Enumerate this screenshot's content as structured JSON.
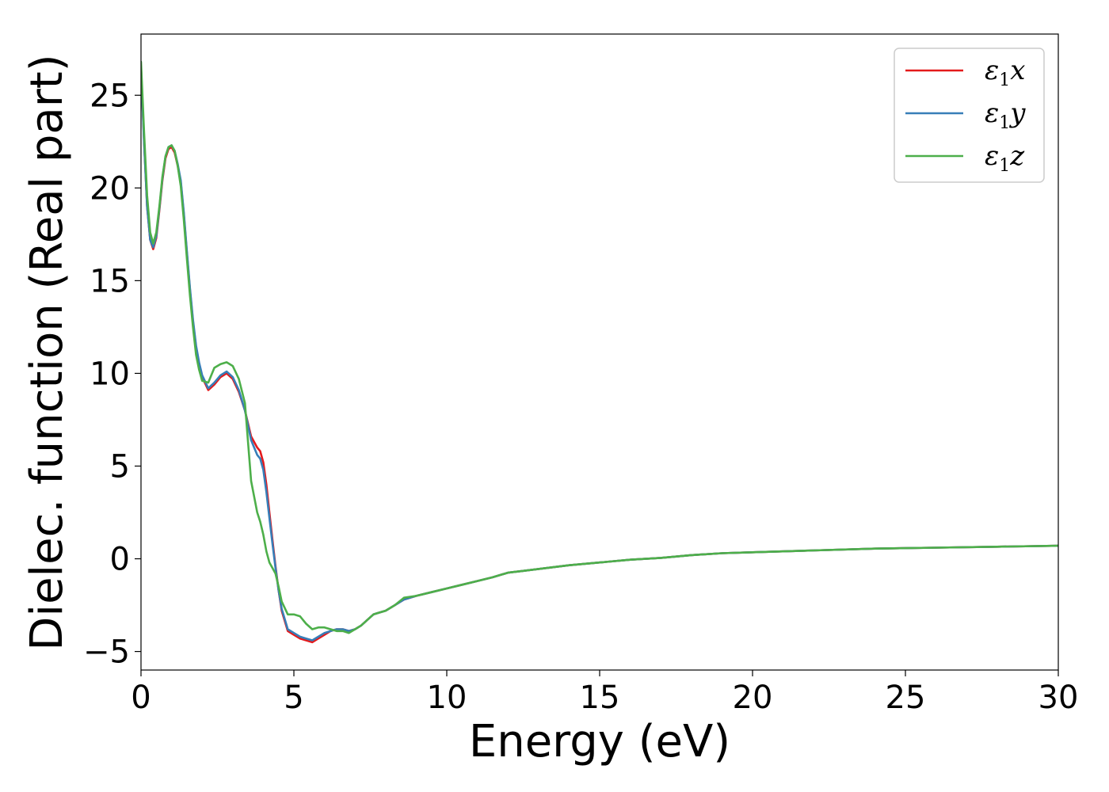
{
  "chart_data": {
    "type": "line",
    "xlabel": "Energy (eV)",
    "ylabel": "Dielec. function (Real part)",
    "xlim": [
      0,
      30
    ],
    "ylim": [
      -6,
      28.3
    ],
    "xticks": [
      0,
      5,
      10,
      15,
      20,
      25,
      30
    ],
    "xtick_labels": [
      "0",
      "5",
      "10",
      "15",
      "20",
      "25",
      "30"
    ],
    "yticks": [
      -5,
      0,
      5,
      10,
      15,
      20,
      25
    ],
    "ytick_labels": [
      "−5",
      "0",
      "5",
      "10",
      "15",
      "20",
      "25"
    ],
    "grid": false,
    "legend_position": "top-right",
    "series": [
      {
        "name": "ε1x",
        "legend_main": "ε",
        "legend_sub": "1",
        "legend_var": "x",
        "color": "#e41a1c",
        "x": [
          0,
          0.1,
          0.2,
          0.3,
          0.4,
          0.5,
          0.6,
          0.7,
          0.8,
          0.9,
          1.0,
          1.1,
          1.2,
          1.3,
          1.4,
          1.5,
          1.6,
          1.7,
          1.8,
          1.9,
          2.0,
          2.2,
          2.4,
          2.6,
          2.8,
          3.0,
          3.2,
          3.4,
          3.6,
          3.8,
          3.9,
          4.0,
          4.1,
          4.2,
          4.3,
          4.4,
          4.5,
          4.6,
          4.8,
          5.0,
          5.2,
          5.4,
          5.6,
          5.8,
          6.0,
          6.2,
          6.4,
          6.6,
          6.8,
          7.0,
          7.2,
          7.4,
          7.6,
          7.8,
          8.0,
          8.3,
          8.6,
          9.0,
          9.5,
          10.0,
          10.5,
          11.0,
          11.5,
          12.0,
          12.5,
          13.0,
          14.0,
          15.0,
          16.0,
          17.0,
          18.0,
          19.0,
          20.0,
          22.0,
          24.0,
          26.0,
          28.0,
          30.0
        ],
        "values": [
          26.5,
          22.5,
          19.0,
          17.2,
          16.7,
          17.3,
          18.8,
          20.4,
          21.6,
          22.1,
          22.2,
          21.9,
          21.2,
          20.3,
          18.6,
          16.5,
          14.5,
          12.8,
          11.4,
          10.5,
          9.8,
          9.1,
          9.4,
          9.8,
          10.0,
          9.7,
          9.0,
          8.0,
          6.6,
          6.0,
          5.8,
          5.2,
          4.0,
          2.5,
          1.0,
          -0.4,
          -1.7,
          -2.8,
          -3.9,
          -4.1,
          -4.3,
          -4.4,
          -4.5,
          -4.3,
          -4.1,
          -3.9,
          -3.8,
          -3.8,
          -3.9,
          -3.8,
          -3.6,
          -3.3,
          -3.0,
          -2.9,
          -2.8,
          -2.5,
          -2.2,
          -2.0,
          -1.8,
          -1.6,
          -1.4,
          -1.2,
          -1.0,
          -0.75,
          -0.65,
          -0.55,
          -0.35,
          -0.2,
          -0.05,
          0.05,
          0.2,
          0.3,
          0.35,
          0.45,
          0.55,
          0.6,
          0.65,
          0.7
        ]
      },
      {
        "name": "ε1y",
        "legend_main": "ε",
        "legend_sub": "1",
        "legend_var": "y",
        "color": "#377eb8",
        "x": [
          0,
          0.1,
          0.2,
          0.3,
          0.4,
          0.5,
          0.6,
          0.7,
          0.8,
          0.9,
          1.0,
          1.1,
          1.2,
          1.3,
          1.4,
          1.5,
          1.6,
          1.7,
          1.8,
          1.9,
          2.0,
          2.2,
          2.4,
          2.6,
          2.8,
          3.0,
          3.2,
          3.4,
          3.6,
          3.8,
          3.9,
          4.0,
          4.1,
          4.2,
          4.3,
          4.4,
          4.5,
          4.6,
          4.8,
          5.0,
          5.2,
          5.4,
          5.6,
          5.8,
          6.0,
          6.2,
          6.4,
          6.6,
          6.8,
          7.0,
          7.2,
          7.4,
          7.6,
          7.8,
          8.0,
          8.3,
          8.6,
          9.0,
          9.5,
          10.0,
          10.5,
          11.0,
          11.5,
          12.0,
          12.5,
          13.0,
          14.0,
          15.0,
          16.0,
          17.0,
          18.0,
          19.0,
          20.0,
          22.0,
          24.0,
          26.0,
          28.0,
          30.0
        ],
        "values": [
          26.4,
          22.4,
          19.0,
          17.2,
          16.8,
          17.4,
          18.9,
          20.5,
          21.7,
          22.2,
          22.3,
          22.0,
          21.3,
          20.4,
          18.7,
          16.6,
          14.6,
          12.9,
          11.5,
          10.6,
          9.9,
          9.2,
          9.5,
          9.9,
          10.1,
          9.8,
          9.1,
          8.0,
          6.4,
          5.6,
          5.4,
          4.8,
          3.6,
          2.2,
          0.8,
          -0.5,
          -1.7,
          -2.7,
          -3.8,
          -4.0,
          -4.2,
          -4.3,
          -4.4,
          -4.2,
          -4.0,
          -3.9,
          -3.8,
          -3.8,
          -3.9,
          -3.8,
          -3.6,
          -3.3,
          -3.0,
          -2.9,
          -2.8,
          -2.5,
          -2.2,
          -2.0,
          -1.8,
          -1.6,
          -1.4,
          -1.2,
          -1.0,
          -0.75,
          -0.65,
          -0.55,
          -0.35,
          -0.2,
          -0.05,
          0.05,
          0.2,
          0.3,
          0.35,
          0.45,
          0.55,
          0.6,
          0.65,
          0.7
        ]
      },
      {
        "name": "ε1z",
        "legend_main": "ε",
        "legend_sub": "1",
        "legend_var": "z",
        "color": "#4daf4a",
        "x": [
          0,
          0.1,
          0.2,
          0.3,
          0.4,
          0.5,
          0.6,
          0.7,
          0.8,
          0.9,
          1.0,
          1.1,
          1.2,
          1.3,
          1.4,
          1.5,
          1.6,
          1.7,
          1.8,
          1.9,
          2.0,
          2.2,
          2.4,
          2.6,
          2.8,
          3.0,
          3.2,
          3.4,
          3.6,
          3.8,
          3.9,
          4.0,
          4.1,
          4.2,
          4.3,
          4.4,
          4.5,
          4.6,
          4.8,
          5.0,
          5.2,
          5.4,
          5.6,
          5.8,
          6.0,
          6.2,
          6.4,
          6.6,
          6.8,
          7.0,
          7.2,
          7.4,
          7.6,
          7.8,
          8.0,
          8.3,
          8.6,
          9.0,
          9.5,
          10.0,
          10.5,
          11.0,
          11.5,
          12.0,
          12.5,
          13.0,
          14.0,
          15.0,
          16.0,
          17.0,
          18.0,
          19.0,
          20.0,
          22.0,
          24.0,
          26.0,
          28.0,
          30.0
        ],
        "values": [
          26.8,
          23.0,
          19.6,
          17.6,
          17.0,
          17.6,
          19.0,
          20.6,
          21.7,
          22.2,
          22.3,
          22.0,
          21.2,
          20.1,
          18.3,
          16.2,
          14.2,
          12.5,
          11.0,
          10.2,
          9.6,
          9.5,
          10.3,
          10.5,
          10.6,
          10.4,
          9.7,
          8.4,
          4.2,
          2.5,
          2.0,
          1.3,
          0.4,
          -0.2,
          -0.5,
          -0.8,
          -1.5,
          -2.3,
          -3.0,
          -3.0,
          -3.1,
          -3.5,
          -3.8,
          -3.7,
          -3.7,
          -3.8,
          -3.9,
          -3.9,
          -4.0,
          -3.8,
          -3.6,
          -3.3,
          -3.0,
          -2.9,
          -2.8,
          -2.5,
          -2.1,
          -2.0,
          -1.8,
          -1.6,
          -1.4,
          -1.2,
          -1.0,
          -0.75,
          -0.65,
          -0.55,
          -0.35,
          -0.2,
          -0.05,
          0.05,
          0.2,
          0.3,
          0.35,
          0.45,
          0.55,
          0.6,
          0.65,
          0.7
        ]
      }
    ]
  }
}
